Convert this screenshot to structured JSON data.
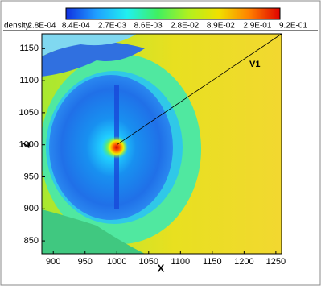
{
  "chart_data": {
    "type": "contour",
    "colorbar": {
      "label": "density:",
      "scale": "log",
      "clim": [
        0.00061,
        0.6
      ],
      "colors": [
        "#1030e0",
        "#20a0ff",
        "#20f0f0",
        "#40f060",
        "#b0f020",
        "#f0e000",
        "#ff8000",
        "#e00000"
      ],
      "ticks": [
        {
          "value": 0.00028,
          "label": "2.8E-04"
        },
        {
          "value": 0.00084,
          "label": "8.4E-04"
        },
        {
          "value": 0.0027,
          "label": "2.7E-03"
        },
        {
          "value": 0.0086,
          "label": "8.6E-03"
        },
        {
          "value": 0.028,
          "label": "2.8E-02"
        },
        {
          "value": 0.089,
          "label": "8.9E-02"
        },
        {
          "value": 0.29,
          "label": "2.9E-01"
        },
        {
          "value": 0.92,
          "label": "9.2E-01"
        }
      ]
    },
    "xlabel": "X",
    "ylabel": "Z",
    "xlim": [
      882,
      1259
    ],
    "ylim": [
      830,
      1173
    ],
    "xticks": [
      900,
      950,
      1000,
      1050,
      1100,
      1150,
      1200,
      1250
    ],
    "yticks": [
      850,
      900,
      950,
      1000,
      1050,
      1100,
      1150
    ],
    "annotation": {
      "text": "V1",
      "x": [
        1000,
        1259
      ],
      "y": [
        1000,
        1173
      ]
    }
  }
}
